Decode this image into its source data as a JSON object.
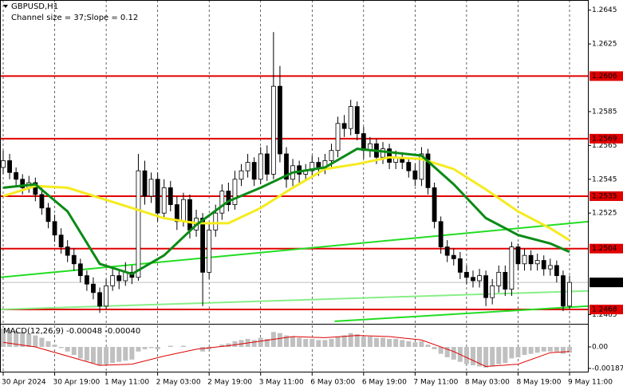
{
  "chart_data": [
    {
      "type": "candlestick",
      "title": "GBPUSD,H1",
      "subtitle": "Channel size = 37;Slope = 0.12",
      "categories": [
        "30 Apr 2024",
        null,
        null,
        null,
        null,
        null,
        null,
        null,
        "30 Apr 19:00",
        null,
        null,
        null,
        null,
        null,
        null,
        null,
        "1 May 11:00",
        null,
        null,
        null,
        null,
        null,
        null,
        null,
        "2 May 03:00",
        null,
        null,
        null,
        null,
        null,
        null,
        null,
        "2 May 19:00",
        null,
        null,
        null,
        null,
        null,
        null,
        null,
        "3 May 11:00",
        null,
        null,
        null,
        null,
        null,
        null,
        null,
        "6 May 03:00",
        null,
        null,
        null,
        null,
        null,
        null,
        null,
        "6 May 19:00",
        null,
        null,
        null,
        null,
        null,
        null,
        null,
        "7 May 11:00",
        null,
        null,
        null,
        null,
        null,
        null,
        null,
        "8 May 03:00",
        null,
        null,
        null,
        null,
        null,
        null,
        null,
        "8 May 19:00",
        null,
        null,
        null,
        null,
        null,
        null,
        null,
        "9 May 11:00"
      ],
      "ohlc": [
        [
          1.2552,
          1.2562,
          1.2548,
          1.2556
        ],
        [
          1.2556,
          1.256,
          1.2545,
          1.2549
        ],
        [
          1.2549,
          1.2552,
          1.2541,
          1.2545
        ],
        [
          1.2545,
          1.2548,
          1.2536,
          1.254
        ],
        [
          1.254,
          1.2547,
          1.2537,
          1.2543
        ],
        [
          1.2543,
          1.2546,
          1.2532,
          1.2536
        ],
        [
          1.2536,
          1.254,
          1.2524,
          1.2528
        ],
        [
          1.2528,
          1.2531,
          1.2516,
          1.252
        ],
        [
          1.252,
          1.2524,
          1.2508,
          1.2512
        ],
        [
          1.2512,
          1.2516,
          1.2501,
          1.2505
        ],
        [
          1.2505,
          1.2509,
          1.2496,
          1.25
        ],
        [
          1.25,
          1.2504,
          1.2491,
          1.2495
        ],
        [
          1.2495,
          1.2498,
          1.2484,
          1.2488
        ],
        [
          1.2488,
          1.2491,
          1.2479,
          1.2483
        ],
        [
          1.2483,
          1.2487,
          1.2474,
          1.2478
        ],
        [
          1.2478,
          1.2481,
          1.2466,
          1.247
        ],
        [
          1.247,
          1.2486,
          1.2468,
          1.2482
        ],
        [
          1.2482,
          1.2493,
          1.2479,
          1.2488
        ],
        [
          1.2488,
          1.2492,
          1.248,
          1.2485
        ],
        [
          1.2485,
          1.2496,
          1.2482,
          1.249
        ],
        [
          1.249,
          1.2494,
          1.2483,
          1.2487
        ],
        [
          1.2487,
          1.256,
          1.2485,
          1.255
        ],
        [
          1.255,
          1.2556,
          1.253,
          1.2535
        ],
        [
          1.2535,
          1.2549,
          1.2531,
          1.2545
        ],
        [
          1.2545,
          1.2549,
          1.252,
          1.2525
        ],
        [
          1.2525,
          1.2545,
          1.2522,
          1.254
        ],
        [
          1.254,
          1.2544,
          1.2526,
          1.253
        ],
        [
          1.253,
          1.2535,
          1.2515,
          1.252
        ],
        [
          1.252,
          1.2537,
          1.2517,
          1.2533
        ],
        [
          1.2533,
          1.2536,
          1.251,
          1.2515
        ],
        [
          1.2515,
          1.2527,
          1.2511,
          1.2522
        ],
        [
          1.2522,
          1.2525,
          1.247,
          1.249
        ],
        [
          1.249,
          1.2519,
          1.2486,
          1.2515
        ],
        [
          1.2515,
          1.253,
          1.2511,
          1.2525
        ],
        [
          1.2525,
          1.2542,
          1.2521,
          1.2538
        ],
        [
          1.2538,
          1.2543,
          1.2526,
          1.253
        ],
        [
          1.253,
          1.255,
          1.2527,
          1.2545
        ],
        [
          1.2545,
          1.2554,
          1.2541,
          1.255
        ],
        [
          1.255,
          1.256,
          1.2546,
          1.2555
        ],
        [
          1.2555,
          1.2558,
          1.2541,
          1.2545
        ],
        [
          1.2545,
          1.2564,
          1.2542,
          1.256
        ],
        [
          1.256,
          1.2565,
          1.2544,
          1.2548
        ],
        [
          1.2548,
          1.2632,
          1.2545,
          1.26
        ],
        [
          1.26,
          1.2612,
          1.2555,
          1.256
        ],
        [
          1.256,
          1.2564,
          1.254,
          1.2545
        ],
        [
          1.2545,
          1.2557,
          1.2541,
          1.2553
        ],
        [
          1.2553,
          1.2556,
          1.2543,
          1.2548
        ],
        [
          1.2548,
          1.2554,
          1.2544,
          1.255
        ],
        [
          1.255,
          1.2559,
          1.2546,
          1.2555
        ],
        [
          1.2555,
          1.2558,
          1.2547,
          1.2552
        ],
        [
          1.2552,
          1.256,
          1.2548,
          1.2556
        ],
        [
          1.2556,
          1.2566,
          1.2552,
          1.2562
        ],
        [
          1.2562,
          1.2582,
          1.2558,
          1.2578
        ],
        [
          1.2578,
          1.2583,
          1.257,
          1.2575
        ],
        [
          1.2575,
          1.2592,
          1.2571,
          1.2588
        ],
        [
          1.2588,
          1.2591,
          1.2568,
          1.2572
        ],
        [
          1.2572,
          1.2576,
          1.2557,
          1.2562
        ],
        [
          1.2562,
          1.257,
          1.2558,
          1.2566
        ],
        [
          1.2566,
          1.2569,
          1.2554,
          1.2558
        ],
        [
          1.2558,
          1.2567,
          1.2554,
          1.2563
        ],
        [
          1.2563,
          1.2566,
          1.2551,
          1.2555
        ],
        [
          1.2555,
          1.2562,
          1.2551,
          1.2558
        ],
        [
          1.2558,
          1.2561,
          1.2551,
          1.2555
        ],
        [
          1.2555,
          1.2558,
          1.2546,
          1.255
        ],
        [
          1.255,
          1.2554,
          1.2541,
          1.2545
        ],
        [
          1.2545,
          1.2564,
          1.2541,
          1.256
        ],
        [
          1.256,
          1.2563,
          1.2536,
          1.254
        ],
        [
          1.254,
          1.2543,
          1.2516,
          1.252
        ],
        [
          1.252,
          1.2523,
          1.2501,
          1.2505
        ],
        [
          1.2505,
          1.2509,
          1.2496,
          1.25
        ],
        [
          1.25,
          1.2504,
          1.2494,
          1.2498
        ],
        [
          1.2498,
          1.2502,
          1.2486,
          1.249
        ],
        [
          1.249,
          1.2494,
          1.2483,
          1.2487
        ],
        [
          1.2487,
          1.2491,
          1.2481,
          1.2485
        ],
        [
          1.2485,
          1.2492,
          1.2481,
          1.2488
        ],
        [
          1.2488,
          1.2491,
          1.247,
          1.2475
        ],
        [
          1.2475,
          1.2486,
          1.2471,
          1.2482
        ],
        [
          1.2482,
          1.2494,
          1.2478,
          1.249
        ],
        [
          1.249,
          1.2494,
          1.2476,
          1.248
        ],
        [
          1.248,
          1.2508,
          1.2476,
          1.2505
        ],
        [
          1.2505,
          1.2507,
          1.2491,
          1.2495
        ],
        [
          1.2495,
          1.2504,
          1.2491,
          1.25
        ],
        [
          1.25,
          1.2503,
          1.2491,
          1.2495
        ],
        [
          1.2495,
          1.2501,
          1.2491,
          1.2497
        ],
        [
          1.2497,
          1.25,
          1.2488,
          1.2492
        ],
        [
          1.2492,
          1.2498,
          1.2488,
          1.2494
        ],
        [
          1.2494,
          1.2497,
          1.2484,
          1.2488
        ],
        [
          1.2488,
          1.2491,
          1.2467,
          1.247
        ],
        [
          1.247,
          1.2488,
          1.2468,
          1.2484
        ]
      ],
      "ylim": [
        1.246,
        1.2651
      ],
      "yticks": [
        1.2465,
        1.2525,
        1.2545,
        1.2565,
        1.2585,
        1.2625,
        1.2645
      ],
      "trendlines": [
        {
          "color": "#22dd22",
          "x": [
            -0.5,
            91
          ],
          "values": [
            1.2487,
            1.252
          ]
        },
        {
          "color": "#22dd22",
          "x": [
            51.5,
            91
          ],
          "values": [
            1.2461,
            1.247
          ]
        },
        {
          "color": "#88ee88",
          "x": [
            -0.5,
            91
          ],
          "values": [
            1.2468,
            1.2479
          ]
        }
      ],
      "overlays": [
        {
          "color": "#f5eb1e",
          "x": [
            0,
            5,
            10,
            15,
            20,
            25,
            30,
            35,
            40,
            45,
            50,
            55,
            60,
            65,
            70,
            75,
            80,
            85,
            88
          ],
          "values": [
            1.2535,
            1.2541,
            1.254,
            1.2534,
            1.2528,
            1.2522,
            1.2519,
            1.2519,
            1.2528,
            1.254,
            1.2551,
            1.2554,
            1.2558,
            1.2557,
            1.2551,
            1.2539,
            1.2526,
            1.2516,
            1.2509
          ]
        },
        {
          "color": "#0b8a16",
          "x": [
            0,
            5,
            10,
            15,
            20,
            25,
            30,
            35,
            40,
            45,
            50,
            55,
            60,
            65,
            70,
            75,
            80,
            85,
            88
          ],
          "values": [
            1.254,
            1.2542,
            1.2526,
            1.2495,
            1.2489,
            1.25,
            1.2518,
            1.2532,
            1.254,
            1.2549,
            1.2552,
            1.2563,
            1.2561,
            1.2559,
            1.2542,
            1.2522,
            1.2512,
            1.2507,
            1.2502
          ]
        }
      ],
      "levels": [
        {
          "value": 1.2606,
          "color": "#e00000"
        },
        {
          "value": 1.2569,
          "color": "#e00000"
        },
        {
          "value": 1.2535,
          "color": "#e00000"
        },
        {
          "value": 1.2504,
          "color": "#e00000"
        },
        {
          "value": 1.2468,
          "color": "#e00000"
        }
      ],
      "current_price": 1.2484
    },
    {
      "type": "macd",
      "title": "MACD(12,26,9) -0.00048 -0.00040",
      "histogram": {
        "color": "#c0c0c0",
        "values": [
          0.0016,
          0.0015,
          0.0014,
          0.0013,
          0.0012,
          0.001,
          0.0008,
          0.0005,
          0.0002,
          -0.0001,
          -0.0004,
          -0.0007,
          -0.001,
          -0.0012,
          -0.0014,
          -0.0016,
          -0.0015,
          -0.0014,
          -0.0013,
          -0.0012,
          -0.0011,
          -0.0004,
          -0.0002,
          -0.0001,
          -0.0002,
          0.0,
          0.0001,
          0.0,
          0.0001,
          0.0,
          0.0,
          -0.0004,
          -0.0002,
          0.0,
          0.0002,
          0.0003,
          0.0005,
          0.0006,
          0.0007,
          0.0006,
          0.0008,
          0.0007,
          0.0013,
          0.0012,
          0.001,
          0.0009,
          0.0008,
          0.0007,
          0.0007,
          0.0006,
          0.0006,
          0.0007,
          0.0009,
          0.001,
          0.0012,
          0.0011,
          0.0009,
          0.0009,
          0.0008,
          0.0008,
          0.0007,
          0.0007,
          0.0006,
          0.0005,
          0.0004,
          0.0005,
          0.0002,
          -0.0002,
          -0.0006,
          -0.0009,
          -0.0011,
          -0.0013,
          -0.0015,
          -0.0016,
          -0.0017,
          -0.0018,
          -0.0017,
          -0.0015,
          -0.0014,
          -0.001,
          -0.0009,
          -0.0007,
          -0.0006,
          -0.0005,
          -0.0004,
          -0.0004,
          -0.0004,
          -0.0006,
          -0.0005
        ]
      },
      "signal": {
        "color": "#e00000",
        "x": [
          0,
          5,
          10,
          15,
          20,
          25,
          30,
          35,
          40,
          45,
          50,
          55,
          60,
          65,
          70,
          75,
          80,
          85,
          88
        ],
        "values": [
          0.0004,
          0.0,
          -0.0008,
          -0.0016,
          -0.0015,
          -0.0008,
          -0.0002,
          0.0001,
          0.0005,
          0.0009,
          0.0008,
          0.001,
          0.0009,
          0.0006,
          -0.0004,
          -0.0017,
          -0.0015,
          -0.0005,
          -0.0004
        ]
      },
      "ylim": [
        -0.00222,
        0.00194
      ],
      "yticks": [
        {
          "value": 0,
          "label": "0.00"
        },
        -0.00187
      ]
    }
  ]
}
